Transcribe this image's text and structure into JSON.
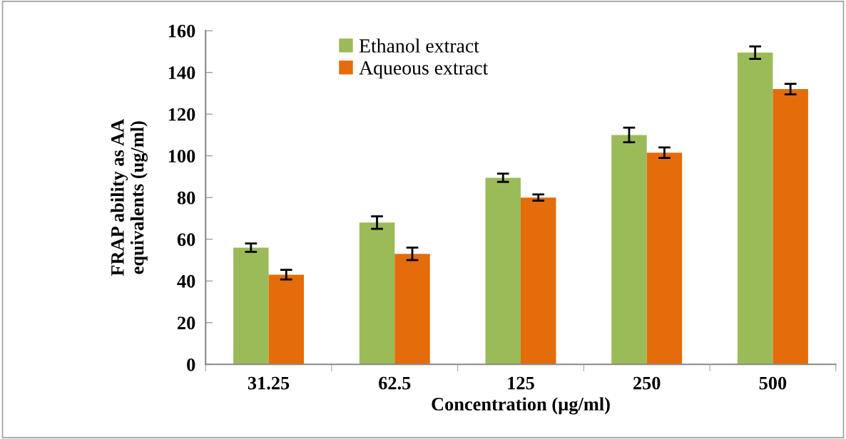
{
  "chart_data": {
    "type": "bar",
    "xlabel": "Concentration (µg/ml)",
    "ylabel": "FRAP ability as AA\nequivalents (ug/ml)",
    "categories": [
      "31.25",
      "62.5",
      "125",
      "250",
      "500"
    ],
    "series": [
      {
        "name": "Ethanol extract",
        "color": "#9bbb59",
        "values": [
          56,
          68,
          89.5,
          110,
          149.5
        ],
        "errors": [
          2,
          3,
          2,
          3.5,
          3
        ]
      },
      {
        "name": "Aqueous extract",
        "color": "#e46c0a",
        "values": [
          43,
          53,
          80,
          101.5,
          132
        ],
        "errors": [
          2.3,
          3,
          1.5,
          2.5,
          2.5
        ]
      }
    ],
    "ylim": [
      0,
      160
    ],
    "yticks": [
      0,
      20,
      40,
      60,
      80,
      100,
      120,
      140,
      160
    ],
    "grid": false,
    "legend": "top"
  }
}
